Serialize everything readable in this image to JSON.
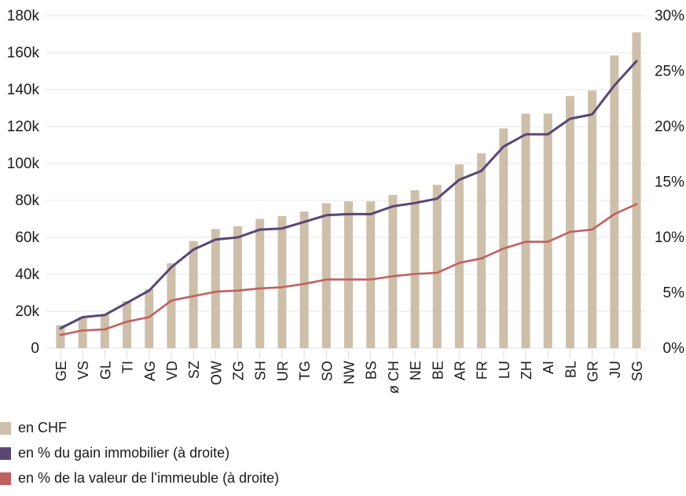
{
  "chart_data": {
    "type": "bar",
    "subtype": "bar-with-two-lines",
    "title": "",
    "categories": [
      "GE",
      "VS",
      "GL",
      "TI",
      "AG",
      "VD",
      "SZ",
      "OW",
      "ZG",
      "SH",
      "UR",
      "TG",
      "SO",
      "NW",
      "BS",
      "ø CH",
      "NE",
      "BE",
      "AR",
      "FR",
      "LU",
      "ZH",
      "AI",
      "BL",
      "GR",
      "JU",
      "SG"
    ],
    "series": [
      {
        "name": "en CHF",
        "type": "bar",
        "axis": "left",
        "unit": "CHF (thousands)",
        "color": "#cdbfa9",
        "values": [
          12.5,
          17,
          18.5,
          25.5,
          32,
          46,
          58,
          64.5,
          66,
          70,
          71.5,
          74,
          78.5,
          79.5,
          79.5,
          83,
          85.5,
          88.5,
          99.5,
          105.5,
          119,
          127,
          127,
          136.5,
          139.5,
          158.5,
          171
        ]
      },
      {
        "name": "en % du gain immobilier (à droite)",
        "type": "line",
        "axis": "right",
        "unit": "%",
        "color": "#584674",
        "values": [
          1.8,
          2.8,
          3.0,
          4.1,
          5.2,
          7.3,
          8.9,
          9.8,
          10.0,
          10.7,
          10.8,
          11.4,
          12.0,
          12.1,
          12.1,
          12.8,
          13.1,
          13.5,
          15.2,
          16.0,
          18.2,
          19.3,
          19.3,
          20.7,
          21.1,
          23.7,
          25.9
        ]
      },
      {
        "name": "en % de la valeur de l’immeuble (à droite)",
        "type": "line",
        "axis": "right",
        "unit": "%",
        "color": "#c25f60",
        "values": [
          1.2,
          1.6,
          1.7,
          2.4,
          2.8,
          4.3,
          4.7,
          5.1,
          5.2,
          5.4,
          5.5,
          5.8,
          6.2,
          6.2,
          6.2,
          6.5,
          6.7,
          6.8,
          7.7,
          8.1,
          9.0,
          9.6,
          9.6,
          10.5,
          10.7,
          12.1,
          13.0
        ]
      }
    ],
    "left_axis": {
      "ticks": [
        "0",
        "20k",
        "40k",
        "60k",
        "80k",
        "100k",
        "120k",
        "140k",
        "160k",
        "180k"
      ],
      "min": 0,
      "max": 180,
      "step": 20
    },
    "right_axis": {
      "ticks": [
        "0%",
        "5%",
        "10%",
        "15%",
        "20%",
        "25%",
        "30%"
      ],
      "min": 0,
      "max": 30,
      "step": 5
    },
    "grid": "horizontal-left-axis-only",
    "legend_position": "bottom-left"
  },
  "legend": {
    "items": [
      {
        "label": "en CHF",
        "color": "#cdbfa9"
      },
      {
        "label": "en % du gain immobilier (à droite)",
        "color": "#584674"
      },
      {
        "label": "en % de la valeur de l’immeuble (à droite)",
        "color": "#c25f60"
      }
    ]
  },
  "style": {
    "grid_color": "#e7e7e7",
    "tick_color": "#d9d9d9",
    "text_color": "#1a1a1a",
    "background": "#ffffff"
  }
}
